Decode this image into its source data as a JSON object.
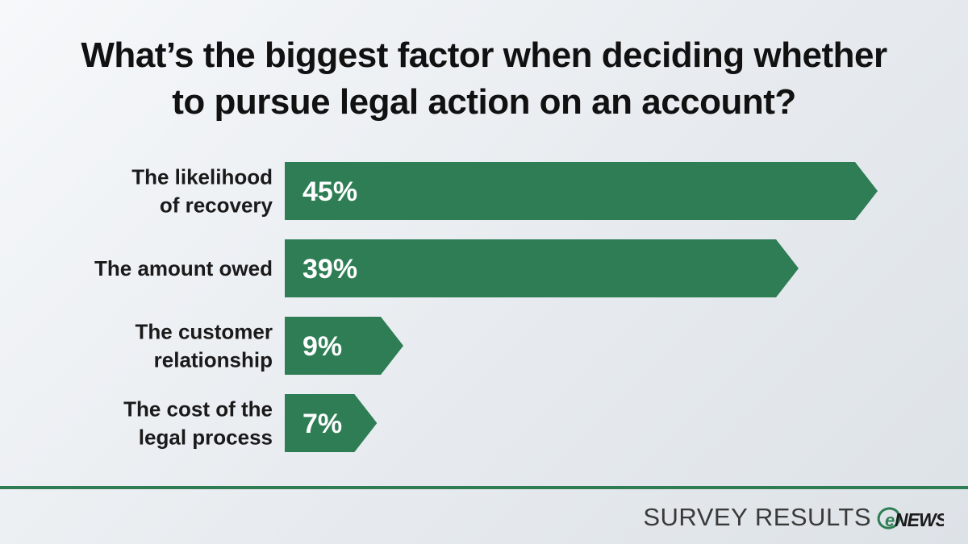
{
  "title_lines": [
    "What’s the biggest factor when deciding whether",
    "to pursue legal action on an account?"
  ],
  "chart_data": {
    "type": "bar",
    "orientation": "horizontal",
    "categories": [
      [
        "The likelihood",
        "of recovery"
      ],
      [
        "The amount owed"
      ],
      [
        "The customer",
        "relationship"
      ],
      [
        "The cost of the",
        "legal process"
      ]
    ],
    "values": [
      45,
      39,
      9,
      7
    ],
    "value_labels": [
      "45%",
      "39%",
      "9%",
      "7%"
    ],
    "unit": "%",
    "grid": false,
    "legend": "none",
    "bar_color": "#2e7d55"
  },
  "footer": {
    "label": "SURVEY RESULTS",
    "logo_text": "NEWS",
    "logo_e": "e"
  },
  "colors": {
    "accent": "#2e7d55",
    "text": "#1a1a1a"
  }
}
